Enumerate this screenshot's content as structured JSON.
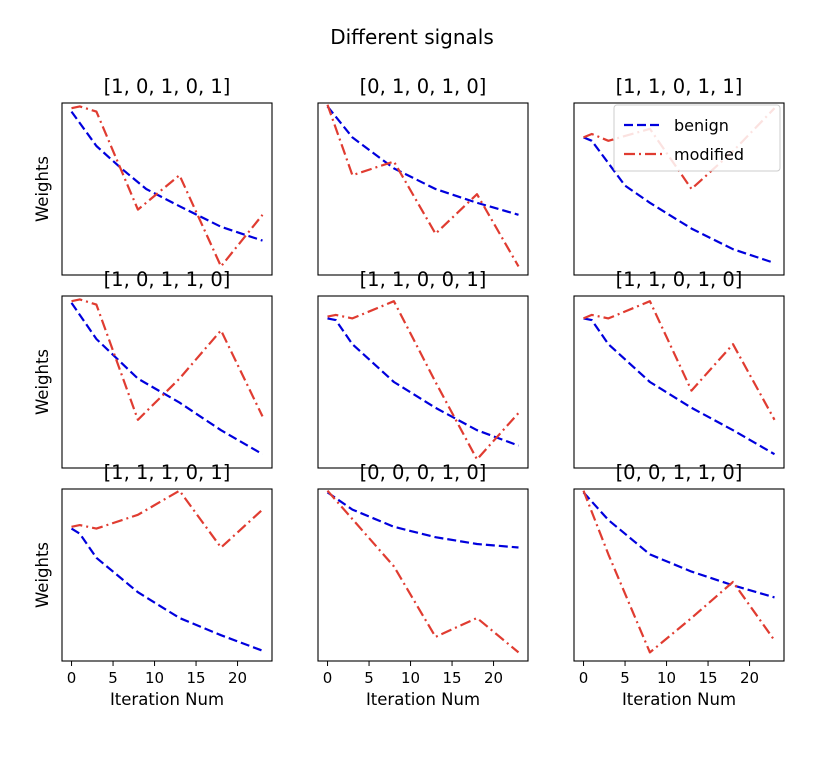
{
  "chart_data": {
    "type": "line",
    "title": "Different signals",
    "xlabel": "Iteration Num",
    "ylabel": "Weights",
    "xlim": [
      -1.15,
      24.15
    ],
    "xticks": [
      0,
      5,
      10,
      15,
      20
    ],
    "ylim": [
      0,
      1
    ],
    "legend": {
      "location": "top-right",
      "entries": [
        "benign",
        "modified"
      ]
    },
    "series_styles": {
      "benign": {
        "color": "#0000dd",
        "dash": "dashed"
      },
      "modified": {
        "color": "#e03c31",
        "dash": "dashdot"
      }
    },
    "panels": [
      {
        "title": "[1, 0, 1, 0, 1]",
        "benign": [
          [
            0,
            0.95
          ],
          [
            3,
            0.75
          ],
          [
            6,
            0.62
          ],
          [
            9,
            0.5
          ],
          [
            13,
            0.4
          ],
          [
            18,
            0.28
          ],
          [
            23,
            0.2
          ]
        ],
        "modified": [
          [
            0,
            0.97
          ],
          [
            1,
            0.98
          ],
          [
            3,
            0.95
          ],
          [
            8,
            0.38
          ],
          [
            13,
            0.58
          ],
          [
            18,
            0.05
          ],
          [
            23,
            0.35
          ]
        ]
      },
      {
        "title": "[0, 1, 0, 1, 0]",
        "benign": [
          [
            0,
            0.98
          ],
          [
            3,
            0.8
          ],
          [
            8,
            0.62
          ],
          [
            13,
            0.5
          ],
          [
            18,
            0.42
          ],
          [
            23,
            0.35
          ]
        ],
        "modified": [
          [
            0,
            0.99
          ],
          [
            3,
            0.58
          ],
          [
            8,
            0.66
          ],
          [
            13,
            0.24
          ],
          [
            18,
            0.47
          ],
          [
            23,
            0.05
          ]
        ]
      },
      {
        "title": "[1, 1, 0, 1, 1]",
        "benign": [
          [
            0,
            0.8
          ],
          [
            1,
            0.78
          ],
          [
            3,
            0.65
          ],
          [
            5,
            0.52
          ],
          [
            8,
            0.42
          ],
          [
            13,
            0.27
          ],
          [
            18,
            0.15
          ],
          [
            23,
            0.07
          ]
        ],
        "modified": [
          [
            0,
            0.8
          ],
          [
            1,
            0.82
          ],
          [
            3,
            0.78
          ],
          [
            8,
            0.85
          ],
          [
            13,
            0.5
          ],
          [
            18,
            0.72
          ],
          [
            23,
            0.97
          ]
        ]
      },
      {
        "title": "[1, 0, 1, 1, 0]",
        "benign": [
          [
            0,
            0.96
          ],
          [
            3,
            0.75
          ],
          [
            8,
            0.52
          ],
          [
            13,
            0.38
          ],
          [
            18,
            0.22
          ],
          [
            23,
            0.08
          ]
        ],
        "modified": [
          [
            0,
            0.97
          ],
          [
            1,
            0.98
          ],
          [
            3,
            0.95
          ],
          [
            8,
            0.28
          ],
          [
            13,
            0.52
          ],
          [
            18,
            0.8
          ],
          [
            23,
            0.3
          ]
        ]
      },
      {
        "title": "[1, 1, 0, 0, 1]",
        "benign": [
          [
            0,
            0.87
          ],
          [
            1,
            0.86
          ],
          [
            3,
            0.72
          ],
          [
            8,
            0.5
          ],
          [
            13,
            0.35
          ],
          [
            18,
            0.22
          ],
          [
            23,
            0.13
          ]
        ],
        "modified": [
          [
            0,
            0.88
          ],
          [
            1,
            0.89
          ],
          [
            3,
            0.87
          ],
          [
            8,
            0.97
          ],
          [
            13,
            0.5
          ],
          [
            18,
            0.05
          ],
          [
            23,
            0.32
          ]
        ]
      },
      {
        "title": "[1, 1, 0, 1, 0]",
        "benign": [
          [
            0,
            0.87
          ],
          [
            1,
            0.86
          ],
          [
            3,
            0.72
          ],
          [
            8,
            0.5
          ],
          [
            13,
            0.35
          ],
          [
            18,
            0.22
          ],
          [
            23,
            0.08
          ]
        ],
        "modified": [
          [
            0,
            0.87
          ],
          [
            1,
            0.89
          ],
          [
            3,
            0.87
          ],
          [
            8,
            0.97
          ],
          [
            13,
            0.45
          ],
          [
            18,
            0.72
          ],
          [
            23,
            0.28
          ]
        ]
      },
      {
        "title": "[1, 1, 1, 0, 1]",
        "benign": [
          [
            0,
            0.77
          ],
          [
            1,
            0.74
          ],
          [
            3,
            0.6
          ],
          [
            8,
            0.4
          ],
          [
            13,
            0.25
          ],
          [
            18,
            0.15
          ],
          [
            23,
            0.06
          ]
        ],
        "modified": [
          [
            0,
            0.78
          ],
          [
            1,
            0.79
          ],
          [
            3,
            0.77
          ],
          [
            8,
            0.85
          ],
          [
            13,
            0.99
          ],
          [
            18,
            0.66
          ],
          [
            23,
            0.88
          ]
        ]
      },
      {
        "title": "[0, 0, 0, 1, 0]",
        "benign": [
          [
            0,
            0.98
          ],
          [
            3,
            0.88
          ],
          [
            8,
            0.78
          ],
          [
            13,
            0.72
          ],
          [
            18,
            0.68
          ],
          [
            23,
            0.66
          ]
        ],
        "modified": [
          [
            0,
            0.99
          ],
          [
            8,
            0.55
          ],
          [
            13,
            0.14
          ],
          [
            18,
            0.25
          ],
          [
            23,
            0.05
          ]
        ]
      },
      {
        "title": "[0, 0, 1, 1, 0]",
        "benign": [
          [
            0,
            0.98
          ],
          [
            3,
            0.82
          ],
          [
            8,
            0.62
          ],
          [
            13,
            0.52
          ],
          [
            18,
            0.44
          ],
          [
            23,
            0.37
          ]
        ],
        "modified": [
          [
            0,
            0.99
          ],
          [
            3,
            0.62
          ],
          [
            8,
            0.05
          ],
          [
            13,
            0.25
          ],
          [
            18,
            0.46
          ],
          [
            23,
            0.12
          ]
        ]
      }
    ]
  }
}
